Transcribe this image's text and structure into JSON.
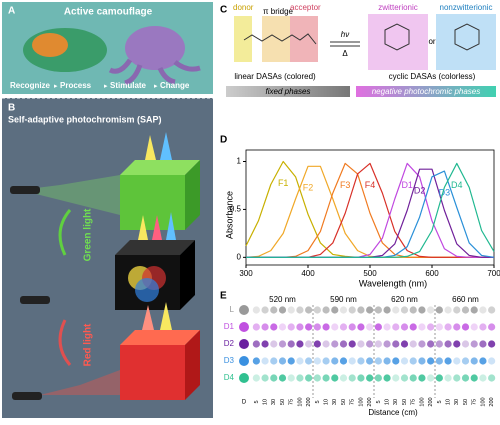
{
  "panel_a": {
    "label": "A",
    "title": "Active camouflage",
    "steps": [
      "Recognize",
      "Process",
      "Stimulate",
      "Change"
    ]
  },
  "panel_b": {
    "label": "B",
    "title": "Self-adaptive photochromism (SAP)",
    "green": "Green light",
    "red": "Red light"
  },
  "panel_c": {
    "label": "C",
    "donor": "donor",
    "bridge": "π bridge",
    "acceptor": "acceptor",
    "zwitterionic": "zwitterionic",
    "nonzwitterionic": "nonzwitterionic",
    "hv": "hν",
    "delta": "Δ",
    "or": "or",
    "linear": "linear DASAs (colored)",
    "cyclic": "cyclic DASAs (colorless)",
    "fixed": "fixed phases",
    "negative": "negative photochromic phases"
  },
  "chart_data": {
    "type": "line",
    "label": "D",
    "y_label": "Absorbance",
    "x_label": "Wavelength (nm)",
    "x": [
      300,
      320,
      340,
      360,
      380,
      400,
      420,
      440,
      460,
      480,
      500,
      520,
      540,
      560,
      580,
      600,
      620,
      640,
      660,
      680,
      700
    ],
    "series": [
      {
        "name": "F1",
        "color": "#c8b000",
        "values": [
          0.12,
          0.38,
          0.76,
          1.0,
          0.84,
          0.45,
          0.15,
          0.03,
          0.01,
          0,
          0,
          0,
          0,
          0,
          0,
          0,
          0,
          0,
          0,
          0,
          0
        ]
      },
      {
        "name": "F2",
        "color": "#f0a828",
        "values": [
          0,
          0.01,
          0.07,
          0.25,
          0.61,
          0.95,
          0.95,
          0.61,
          0.25,
          0.07,
          0.01,
          0,
          0,
          0,
          0,
          0,
          0,
          0,
          0,
          0,
          0
        ]
      },
      {
        "name": "F3",
        "color": "#f07a20",
        "values": [
          0,
          0,
          0,
          0,
          0.01,
          0.07,
          0.27,
          0.67,
          0.98,
          0.87,
          0.46,
          0.15,
          0.03,
          0,
          0,
          0,
          0,
          0,
          0,
          0,
          0
        ]
      },
      {
        "name": "F4",
        "color": "#d83028",
        "values": [
          0,
          0,
          0,
          0,
          0,
          0,
          0.03,
          0.15,
          0.46,
          0.87,
          0.98,
          0.67,
          0.27,
          0.07,
          0.01,
          0,
          0,
          0,
          0,
          0,
          0
        ]
      },
      {
        "name": "D1",
        "color": "#c048e0",
        "values": [
          0,
          0,
          0,
          0,
          0,
          0,
          0,
          0,
          0,
          0,
          0.03,
          0.2,
          0.61,
          0.98,
          0.84,
          0.38,
          0.09,
          0.01,
          0,
          0,
          0
        ]
      },
      {
        "name": "D2",
        "color": "#70209a",
        "values": [
          0,
          0,
          0,
          0,
          0,
          0,
          0,
          0,
          0,
          0,
          0,
          0.02,
          0.14,
          0.49,
          0.92,
          0.92,
          0.49,
          0.14,
          0.02,
          0,
          0
        ]
      },
      {
        "name": "D3",
        "color": "#2a90d8",
        "values": [
          0,
          0,
          0,
          0,
          0,
          0,
          0,
          0,
          0,
          0,
          0,
          0,
          0.02,
          0.11,
          0.42,
          0.84,
          0.9,
          0.52,
          0.15,
          0.02,
          0
        ]
      },
      {
        "name": "D4",
        "color": "#20b890",
        "values": [
          0,
          0,
          0,
          0,
          0,
          0,
          0,
          0,
          0,
          0,
          0,
          0,
          0,
          0.01,
          0.06,
          0.28,
          0.73,
          0.98,
          0.73,
          0.28,
          0.06
        ]
      }
    ],
    "xlim": [
      300,
      700
    ],
    "xticks": [
      300,
      400,
      500,
      600,
      700
    ],
    "ylim": [
      -0.08,
      1.12
    ],
    "yticks": [
      0,
      0.5,
      1
    ]
  },
  "panel_e": {
    "label": "E",
    "wavelengths": [
      "520 nm",
      "590 nm",
      "620 nm",
      "660 nm"
    ],
    "rows": [
      "L",
      "D1",
      "D2",
      "D3",
      "D4"
    ],
    "first_column": "D",
    "distances": [
      "5",
      "10",
      "30",
      "50",
      "75",
      "100",
      "200"
    ],
    "x_label": "Distance (cm)"
  }
}
